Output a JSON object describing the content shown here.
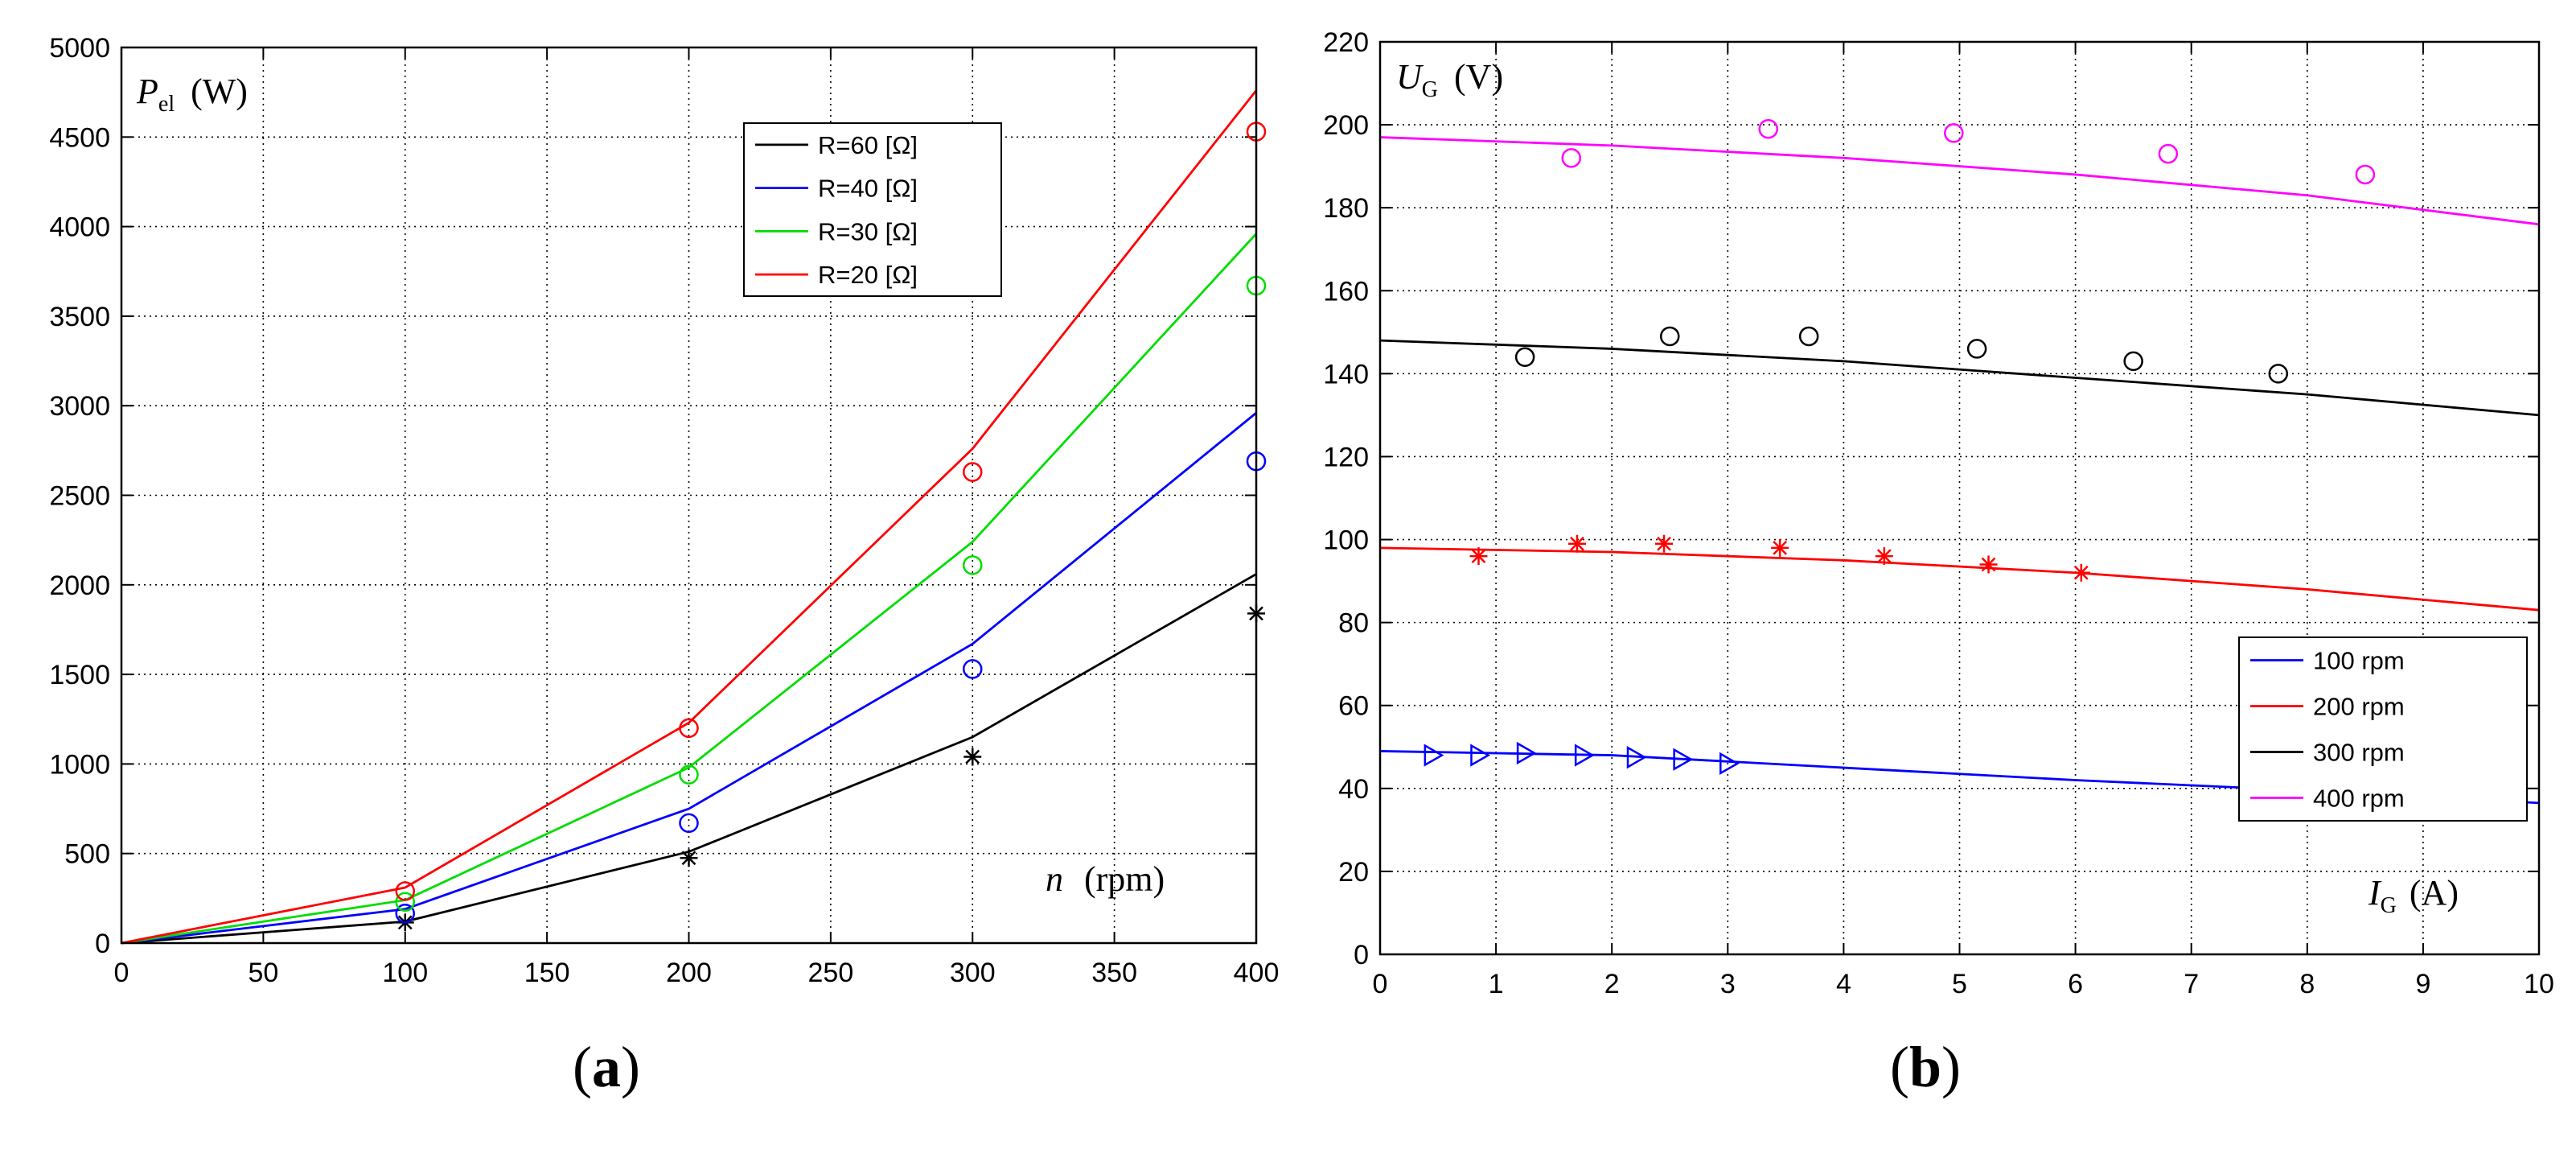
{
  "chart_data": [
    {
      "type": "line",
      "panel_label": "a",
      "ylabel_main": "P",
      "ylabel_sub": "el",
      "ylabel_unit": "(W)",
      "xlabel_main": "n",
      "xlabel_unit": "(rpm)",
      "xlim": [
        0,
        400
      ],
      "ylim": [
        0,
        5000
      ],
      "xticks": [
        0,
        50,
        100,
        150,
        200,
        250,
        300,
        350,
        400
      ],
      "yticks": [
        0,
        500,
        1000,
        1500,
        2000,
        2500,
        3000,
        3500,
        4000,
        4500,
        5000
      ],
      "grid": true,
      "legend_position": "top-right",
      "series": [
        {
          "name": "R=60 [Ω]",
          "color": "#000000",
          "marker": "star",
          "x": [
            0,
            100,
            200,
            300,
            400
          ],
          "y": [
            0,
            120,
            510,
            1150,
            2060
          ],
          "points_x": [
            100,
            200,
            300,
            400
          ],
          "points_y": [
            115,
            475,
            1040,
            1840
          ]
        },
        {
          "name": "R=40 [Ω]",
          "color": "#0000ff",
          "marker": "circle",
          "x": [
            0,
            100,
            200,
            300,
            400
          ],
          "y": [
            0,
            190,
            750,
            1670,
            2960
          ],
          "points_x": [
            100,
            200,
            300,
            400
          ],
          "points_y": [
            165,
            670,
            1530,
            2690
          ]
        },
        {
          "name": "R=30 [Ω]",
          "color": "#00dd00",
          "marker": "circle",
          "x": [
            0,
            100,
            200,
            300,
            400
          ],
          "y": [
            0,
            240,
            980,
            2240,
            3960
          ],
          "points_x": [
            100,
            200,
            300,
            400
          ],
          "points_y": [
            230,
            940,
            2110,
            3670
          ]
        },
        {
          "name": "R=20 [Ω]",
          "color": "#ff0000",
          "marker": "circle",
          "x": [
            0,
            100,
            200,
            300,
            400
          ],
          "y": [
            0,
            310,
            1230,
            2760,
            4760
          ],
          "points_x": [
            100,
            200,
            300,
            400
          ],
          "points_y": [
            290,
            1200,
            2630,
            4530
          ]
        }
      ]
    },
    {
      "type": "line",
      "panel_label": "b",
      "ylabel_main": "U",
      "ylabel_sub": "G",
      "ylabel_unit": "(V)",
      "xlabel_main": "I",
      "xlabel_sub": "G",
      "xlabel_unit": "(A)",
      "xlim": [
        0,
        10
      ],
      "ylim": [
        0,
        220
      ],
      "xticks": [
        0,
        1,
        2,
        3,
        4,
        5,
        6,
        7,
        8,
        9,
        10
      ],
      "yticks": [
        0,
        20,
        40,
        60,
        80,
        100,
        120,
        140,
        160,
        180,
        200,
        220
      ],
      "grid": true,
      "legend_position": "bottom-right",
      "series": [
        {
          "name": "100 rpm",
          "color": "#0000ff",
          "marker": "triangle-right",
          "x": [
            0,
            2,
            4,
            6,
            8,
            10
          ],
          "y": [
            49,
            48,
            45,
            42,
            39.5,
            36.5
          ],
          "points_x": [
            0.45,
            0.85,
            1.25,
            1.75,
            2.2,
            2.6,
            3.0
          ],
          "points_y": [
            48,
            48,
            48.5,
            48,
            47.5,
            47,
            46
          ]
        },
        {
          "name": "200 rpm",
          "color": "#ff0000",
          "marker": "star",
          "x": [
            0,
            2,
            4,
            6,
            8,
            10
          ],
          "y": [
            98,
            97,
            95,
            92,
            88,
            83
          ],
          "points_x": [
            0.85,
            1.7,
            2.45,
            3.45,
            4.35,
            5.25,
            6.05
          ],
          "points_y": [
            96,
            99,
            99,
            98,
            96,
            94,
            92
          ]
        },
        {
          "name": "300 rpm",
          "color": "#000000",
          "marker": "circle",
          "x": [
            0,
            2,
            4,
            6,
            8,
            10
          ],
          "y": [
            148,
            146,
            143,
            139,
            135,
            130
          ],
          "points_x": [
            1.25,
            2.5,
            3.7,
            5.15,
            6.5,
            7.75
          ],
          "points_y": [
            144,
            149,
            149,
            146,
            143,
            140
          ]
        },
        {
          "name": "400 rpm",
          "color": "#ff00ff",
          "marker": "circle",
          "x": [
            0,
            2,
            4,
            6,
            8,
            10
          ],
          "y": [
            197,
            195,
            192,
            188,
            183,
            176
          ],
          "points_x": [
            1.65,
            3.35,
            4.95,
            6.8,
            8.5
          ],
          "points_y": [
            192,
            199,
            198,
            193,
            188
          ]
        }
      ]
    }
  ]
}
